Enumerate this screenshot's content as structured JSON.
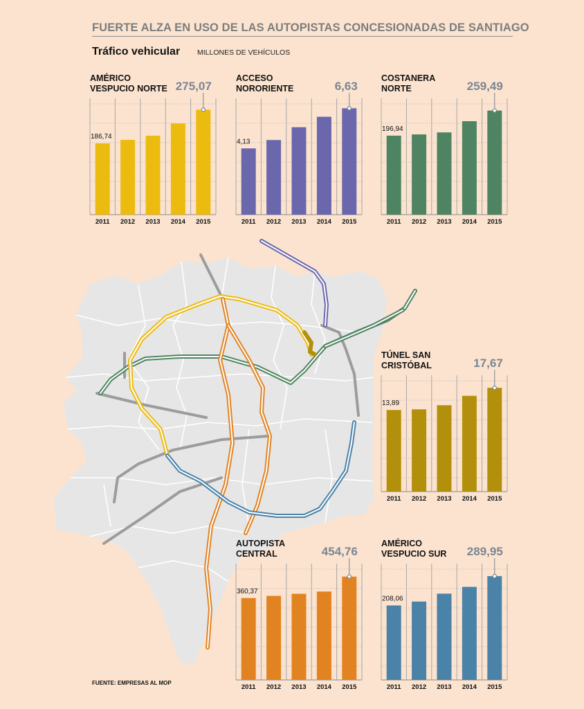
{
  "title": "FUERTE ALZA EN USO DE LAS AUTOPISTAS CONCESIONADAS DE SANTIAGO",
  "subtitle": "Tráfico vehicular",
  "unit": "MILLONES DE VEHÍCULOS",
  "source": "FUENTE: EMPRESAS AL MOP",
  "colors": {
    "background": "#fbe3cf",
    "map_land": "#e6e6e6",
    "map_border": "#ffffff",
    "grid": "#a7a7a7",
    "value_highlight": "#7a8592"
  },
  "chart_data": [
    {
      "type": "bar",
      "name": "AMÉRICO VESPUCIO NORTE",
      "color": "#ecbb10",
      "categories": [
        "2011",
        "2012",
        "2013",
        "2014",
        "2015"
      ],
      "values": [
        186.74,
        196,
        207,
        239,
        275.07
      ],
      "first_label": "186,74",
      "last_label": "275,07",
      "ylim": [
        0,
        305
      ]
    },
    {
      "type": "bar",
      "name": "ACCESO NORORIENTE",
      "color": "#6b67ad",
      "categories": [
        "2011",
        "2012",
        "2013",
        "2014",
        "2015"
      ],
      "values": [
        4.13,
        4.65,
        5.45,
        6.1,
        6.63
      ],
      "first_label": "4,13",
      "last_label": "6,63",
      "ylim": [
        0,
        7.25
      ]
    },
    {
      "type": "bar",
      "name": "COSTANERA NORTE",
      "color": "#4f8462",
      "categories": [
        "2011",
        "2012",
        "2013",
        "2014",
        "2015"
      ],
      "values": [
        196.94,
        200,
        205,
        233,
        259.49
      ],
      "first_label": "196,94",
      "last_label": "259,49",
      "ylim": [
        0,
        290
      ]
    },
    {
      "type": "bar",
      "name": "TÚNEL SAN CRISTÓBAL",
      "color": "#b3900c",
      "categories": [
        "2011",
        "2012",
        "2013",
        "2014",
        "2015"
      ],
      "values": [
        13.89,
        14.0,
        14.7,
        16.3,
        17.67
      ],
      "first_label": "13,89",
      "last_label": "17,67",
      "ylim": [
        0,
        19.8
      ]
    },
    {
      "type": "bar",
      "name": "AUTOPISTA CENTRAL",
      "color": "#e28322",
      "categories": [
        "2011",
        "2012",
        "2013",
        "2014",
        "2015"
      ],
      "values": [
        360.37,
        370,
        379,
        389,
        454.76
      ],
      "first_label": "360,37",
      "last_label": "454,76",
      "ylim": [
        0,
        512
      ]
    },
    {
      "type": "bar",
      "name": "AMÉRICO VESPUCIO SUR",
      "color": "#4a82a8",
      "categories": [
        "2011",
        "2012",
        "2013",
        "2014",
        "2015"
      ],
      "values": [
        208.06,
        219,
        241,
        260,
        289.95
      ],
      "first_label": "208,06",
      "last_label": "289,95",
      "ylim": [
        0,
        325
      ]
    }
  ]
}
